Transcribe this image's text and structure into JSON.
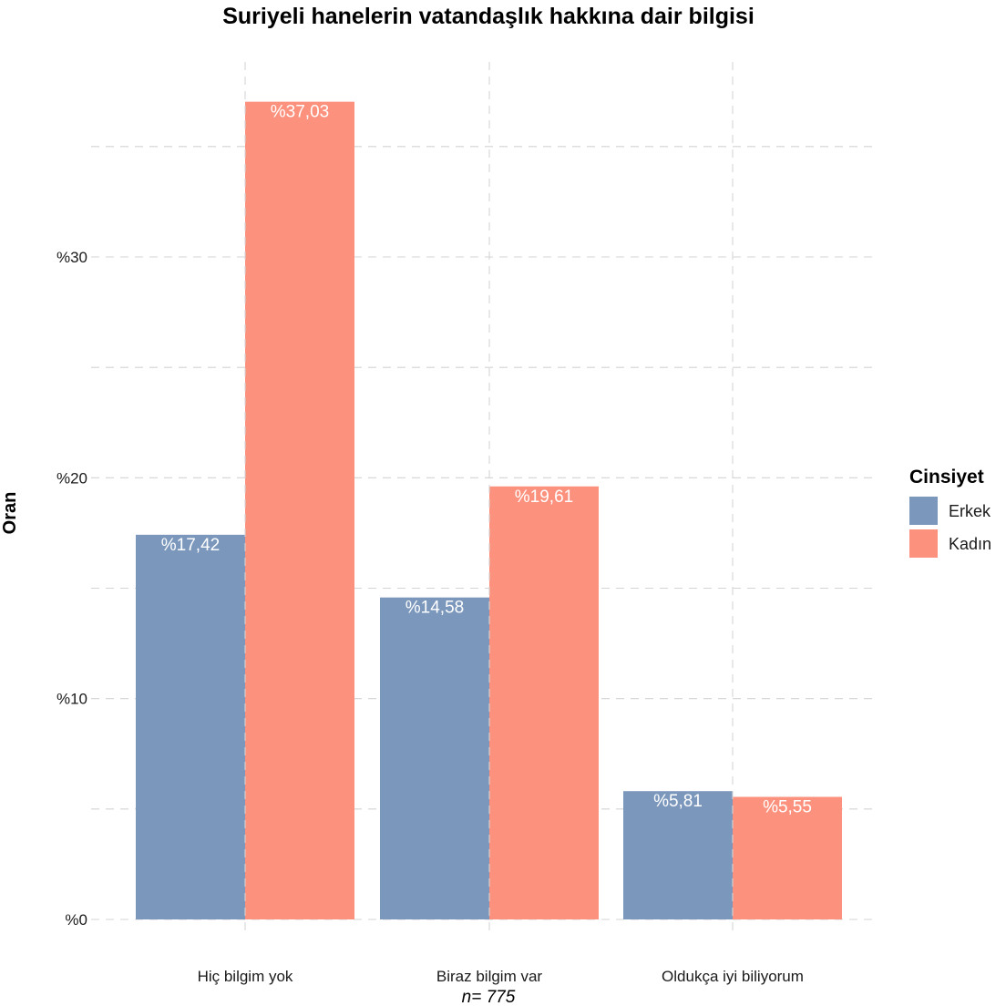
{
  "chart_data": {
    "type": "bar",
    "title": "Suriyeli hanelerin vatandaşlık hakkına dair bilgisi",
    "xlabel": "",
    "ylabel": "Oran",
    "caption": "n=  775",
    "categories": [
      "Hiç bilgim yok",
      "Biraz bilgim var",
      "Oldukça iyi biliyorum"
    ],
    "series": [
      {
        "name": "Erkek",
        "color": "#7b97bc",
        "values": [
          17.42,
          14.58,
          5.81
        ],
        "labels": [
          "%17,42",
          "%14,58",
          "%5,81"
        ]
      },
      {
        "name": "Kadın",
        "color": "#fc917d",
        "values": [
          37.03,
          19.61,
          5.55
        ],
        "labels": [
          "%37,03",
          "%19,61",
          "%5,55"
        ]
      }
    ],
    "ylim": [
      0,
      40
    ],
    "yticks": [
      0,
      10,
      20,
      30
    ],
    "ytick_labels": [
      "%0",
      "%10",
      "%20",
      "%30"
    ],
    "grid": true,
    "legend": {
      "title": "Cinsiyet",
      "position": "right"
    }
  }
}
